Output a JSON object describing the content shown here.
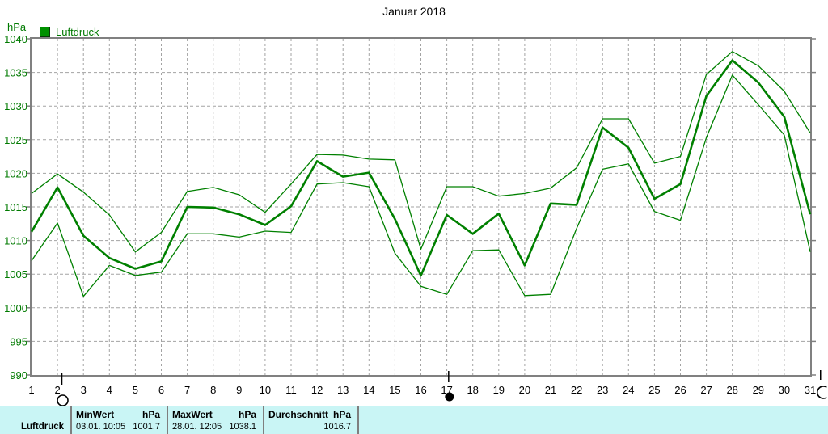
{
  "title": "Januar 2018",
  "y_axis": {
    "unit": "hPa",
    "tick_labels": [
      "1040",
      "1035",
      "1030",
      "1025",
      "1020",
      "1015",
      "1010",
      "1005",
      "1000",
      "995",
      "990"
    ]
  },
  "legend": {
    "label": "Luftdruck",
    "swatch_color": "#009100"
  },
  "chart_data": {
    "type": "line",
    "title": "Januar 2018",
    "ylabel": "hPa",
    "ylim": [
      990,
      1040
    ],
    "grid": true,
    "line_color": "#008000",
    "x": [
      1,
      2,
      3,
      4,
      5,
      6,
      7,
      8,
      9,
      10,
      11,
      12,
      13,
      14,
      15,
      16,
      17,
      18,
      19,
      20,
      21,
      22,
      23,
      24,
      25,
      26,
      27,
      28,
      29,
      30,
      31
    ],
    "series": [
      {
        "name": "Luftdruck Maximum",
        "values": [
          1017.0,
          1019.9,
          1017.2,
          1013.8,
          1008.3,
          1011.2,
          1017.3,
          1017.9,
          1016.8,
          1014.2,
          1018.4,
          1022.8,
          1022.7,
          1022.1,
          1022.0,
          1008.7,
          1018.0,
          1018.0,
          1016.6,
          1017.0,
          1017.8,
          1020.8,
          1028.1,
          1028.1,
          1021.5,
          1022.5,
          1034.7,
          1038.1,
          1036.0,
          1032.2,
          1026.0
        ]
      },
      {
        "name": "Luftdruck Mittelwert",
        "values": [
          1011.3,
          1017.9,
          1010.7,
          1007.4,
          1005.8,
          1006.9,
          1015.0,
          1014.9,
          1013.9,
          1012.3,
          1015.1,
          1021.8,
          1019.5,
          1020.1,
          1013.2,
          1004.8,
          1013.8,
          1011.0,
          1014.0,
          1006.3,
          1015.5,
          1015.3,
          1026.8,
          1023.8,
          1016.2,
          1018.4,
          1031.5,
          1036.8,
          1033.5,
          1028.4,
          1013.9
        ]
      },
      {
        "name": "Luftdruck Minimum",
        "values": [
          1007.0,
          1012.6,
          1001.7,
          1006.3,
          1004.8,
          1005.3,
          1011.0,
          1011.0,
          1010.5,
          1011.4,
          1011.2,
          1018.4,
          1018.6,
          1018.0,
          1008.1,
          1003.2,
          1002.0,
          1008.5,
          1008.6,
          1001.8,
          1002.0,
          1011.8,
          1020.6,
          1021.4,
          1014.3,
          1013.0,
          1025.3,
          1034.6,
          1030.2,
          1025.7,
          1008.3
        ]
      }
    ]
  },
  "moon_events": [
    {
      "phase": "full-moon",
      "day_position": 2.2
    },
    {
      "phase": "new-moon",
      "day_position": 17.1
    },
    {
      "phase": "full-moon",
      "day_position": 31.6
    }
  ],
  "footer": {
    "row_label": "Luftdruck",
    "min": {
      "header": "MinWert",
      "unit": "hPa",
      "datetime": "03.01. 10:05",
      "value": "1001.7"
    },
    "max": {
      "header": "MaxWert",
      "unit": "hPa",
      "datetime": "28.01. 12:05",
      "value": "1038.1"
    },
    "avg": {
      "header": "Durchschnitt",
      "unit": "hPa",
      "value": "1016.7"
    }
  }
}
